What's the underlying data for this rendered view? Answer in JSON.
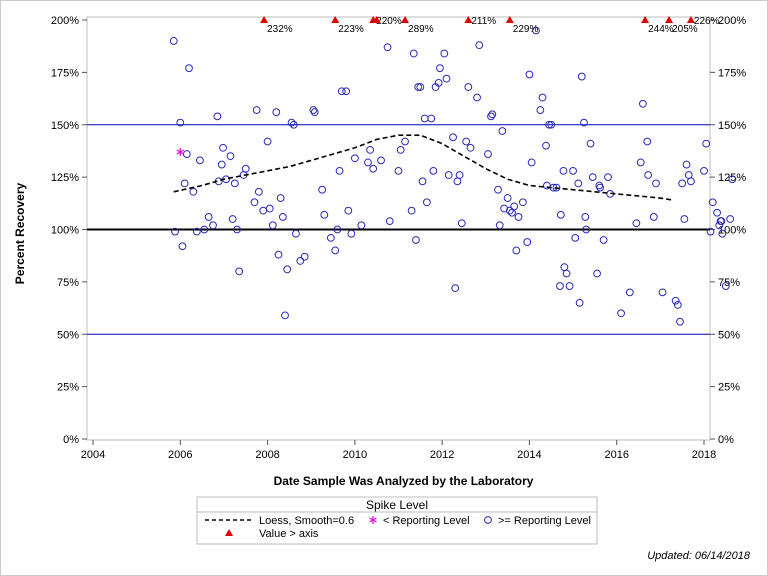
{
  "chart_data": {
    "type": "scatter",
    "xlabel": "Date Sample Was Analyzed by the Laboratory",
    "ylabel": "Percent Recovery",
    "xlim": [
      2004,
      2018.2
    ],
    "ylim": [
      0,
      200
    ],
    "x_ticks": [
      2004,
      2006,
      2008,
      2010,
      2012,
      2014,
      2016,
      2018
    ],
    "y_ticks": [
      0,
      25,
      50,
      75,
      100,
      125,
      150,
      175,
      200
    ],
    "y_tick_labels": [
      "0%",
      "25%",
      "50%",
      "75%",
      "100%",
      "125%",
      "150%",
      "175%",
      "200%"
    ],
    "reference_lines": [
      {
        "y": 50,
        "color": "#0000c0",
        "weight": "thin"
      },
      {
        "y": 100,
        "color": "#000000",
        "weight": "thick"
      },
      {
        "y": 150,
        "color": "#0000c0",
        "weight": "thin"
      }
    ],
    "grid": false,
    "series": [
      {
        "name": ">= Reporting Level",
        "marker": "open-circle",
        "color": "#2a2ab8",
        "points": [
          [
            2005.85,
            190
          ],
          [
            2005.88,
            99
          ],
          [
            2006.0,
            151
          ],
          [
            2006.05,
            92
          ],
          [
            2006.1,
            122
          ],
          [
            2006.15,
            136
          ],
          [
            2006.2,
            177
          ],
          [
            2006.3,
            118
          ],
          [
            2006.38,
            99
          ],
          [
            2006.45,
            133
          ],
          [
            2006.55,
            100
          ],
          [
            2006.65,
            106
          ],
          [
            2006.75,
            102
          ],
          [
            2006.85,
            154
          ],
          [
            2006.88,
            123
          ],
          [
            2006.95,
            131
          ],
          [
            2006.98,
            139
          ],
          [
            2007.05,
            124
          ],
          [
            2007.15,
            135
          ],
          [
            2007.2,
            105
          ],
          [
            2007.25,
            122
          ],
          [
            2007.3,
            100
          ],
          [
            2007.35,
            80
          ],
          [
            2007.45,
            126
          ],
          [
            2007.5,
            129
          ],
          [
            2007.7,
            113
          ],
          [
            2007.75,
            157
          ],
          [
            2007.8,
            118
          ],
          [
            2007.9,
            109
          ],
          [
            2008.0,
            142
          ],
          [
            2008.05,
            110
          ],
          [
            2008.12,
            102
          ],
          [
            2008.2,
            156
          ],
          [
            2008.25,
            88
          ],
          [
            2008.3,
            115
          ],
          [
            2008.35,
            106
          ],
          [
            2008.4,
            59
          ],
          [
            2008.45,
            81
          ],
          [
            2008.55,
            151
          ],
          [
            2008.6,
            150
          ],
          [
            2008.65,
            98
          ],
          [
            2008.75,
            85
          ],
          [
            2008.85,
            87
          ],
          [
            2009.05,
            157
          ],
          [
            2009.08,
            156
          ],
          [
            2009.25,
            119
          ],
          [
            2009.3,
            107
          ],
          [
            2009.45,
            96
          ],
          [
            2009.55,
            90
          ],
          [
            2009.6,
            100
          ],
          [
            2009.65,
            128
          ],
          [
            2009.7,
            166
          ],
          [
            2009.8,
            166
          ],
          [
            2009.85,
            109
          ],
          [
            2009.92,
            98
          ],
          [
            2010.0,
            134
          ],
          [
            2010.15,
            102
          ],
          [
            2010.3,
            132
          ],
          [
            2010.35,
            138
          ],
          [
            2010.42,
            129
          ],
          [
            2010.6,
            133
          ],
          [
            2010.75,
            187
          ],
          [
            2010.8,
            104
          ],
          [
            2011.0,
            128
          ],
          [
            2011.05,
            138
          ],
          [
            2011.15,
            142
          ],
          [
            2011.3,
            109
          ],
          [
            2011.35,
            184
          ],
          [
            2011.4,
            95
          ],
          [
            2011.45,
            168
          ],
          [
            2011.5,
            168
          ],
          [
            2011.55,
            123
          ],
          [
            2011.6,
            153
          ],
          [
            2011.65,
            113
          ],
          [
            2011.75,
            153
          ],
          [
            2011.8,
            128
          ],
          [
            2011.85,
            168
          ],
          [
            2011.92,
            170
          ],
          [
            2011.95,
            177
          ],
          [
            2012.05,
            184
          ],
          [
            2012.1,
            172
          ],
          [
            2012.15,
            126
          ],
          [
            2012.25,
            144
          ],
          [
            2012.3,
            72
          ],
          [
            2012.35,
            123
          ],
          [
            2012.4,
            126
          ],
          [
            2012.45,
            103
          ],
          [
            2012.55,
            142
          ],
          [
            2012.6,
            168
          ],
          [
            2012.65,
            139
          ],
          [
            2012.8,
            163
          ],
          [
            2012.85,
            188
          ],
          [
            2013.05,
            136
          ],
          [
            2013.12,
            154
          ],
          [
            2013.15,
            155
          ],
          [
            2013.28,
            119
          ],
          [
            2013.32,
            102
          ],
          [
            2013.38,
            147
          ],
          [
            2013.42,
            110
          ],
          [
            2013.5,
            115
          ],
          [
            2013.55,
            109
          ],
          [
            2013.6,
            108
          ],
          [
            2013.65,
            111
          ],
          [
            2013.7,
            90
          ],
          [
            2013.75,
            106
          ],
          [
            2013.85,
            113
          ],
          [
            2013.95,
            94
          ],
          [
            2014.0,
            174
          ],
          [
            2014.05,
            132
          ],
          [
            2014.15,
            195
          ],
          [
            2014.25,
            157
          ],
          [
            2014.3,
            163
          ],
          [
            2014.38,
            140
          ],
          [
            2014.4,
            121
          ],
          [
            2014.45,
            150
          ],
          [
            2014.5,
            150
          ],
          [
            2014.55,
            120
          ],
          [
            2014.62,
            120
          ],
          [
            2014.7,
            73
          ],
          [
            2014.72,
            107
          ],
          [
            2014.78,
            128
          ],
          [
            2014.8,
            82
          ],
          [
            2014.85,
            79
          ],
          [
            2014.92,
            73
          ],
          [
            2015.0,
            128
          ],
          [
            2015.05,
            96
          ],
          [
            2015.12,
            122
          ],
          [
            2015.15,
            65
          ],
          [
            2015.2,
            173
          ],
          [
            2015.25,
            151
          ],
          [
            2015.28,
            106
          ],
          [
            2015.3,
            100
          ],
          [
            2015.4,
            141
          ],
          [
            2015.45,
            125
          ],
          [
            2015.55,
            79
          ],
          [
            2015.6,
            121
          ],
          [
            2015.62,
            120
          ],
          [
            2015.7,
            95
          ],
          [
            2015.8,
            125
          ],
          [
            2015.85,
            117
          ],
          [
            2016.1,
            60
          ],
          [
            2016.3,
            70
          ],
          [
            2016.45,
            103
          ],
          [
            2016.55,
            132
          ],
          [
            2016.6,
            160
          ],
          [
            2016.7,
            142
          ],
          [
            2016.72,
            126
          ],
          [
            2016.85,
            106
          ],
          [
            2016.9,
            122
          ],
          [
            2017.05,
            70
          ],
          [
            2017.35,
            66
          ],
          [
            2017.4,
            64
          ],
          [
            2017.45,
            56
          ],
          [
            2017.5,
            122
          ],
          [
            2017.55,
            105
          ],
          [
            2017.6,
            131
          ],
          [
            2017.65,
            126
          ],
          [
            2017.7,
            123
          ],
          [
            2018.0,
            128
          ],
          [
            2018.05,
            141
          ],
          [
            2018.15,
            99
          ],
          [
            2018.2,
            113
          ],
          [
            2018.3,
            108
          ],
          [
            2018.35,
            102
          ],
          [
            2018.38,
            104
          ],
          [
            2018.4,
            104
          ],
          [
            2018.42,
            98
          ],
          [
            2018.5,
            73
          ],
          [
            2018.6,
            105
          ],
          [
            2018.65,
            124
          ]
        ]
      },
      {
        "name": "< Reporting Level",
        "marker": "asterisk",
        "color": "#e000e0",
        "points": [
          [
            2006.0,
            137
          ]
        ]
      },
      {
        "name": "Value > axis",
        "marker": "filled-triangle",
        "color": "#e00000",
        "points": [
          {
            "x": 2007.92,
            "label": "232%"
          },
          {
            "x": 2009.55,
            "label": "223%"
          },
          {
            "x": 2010.42,
            "label": "220%"
          },
          {
            "x": 2010.5,
            "label": ""
          },
          {
            "x": 2011.15,
            "label": "289%"
          },
          {
            "x": 2012.6,
            "label": "211%"
          },
          {
            "x": 2013.55,
            "label": "229%"
          },
          {
            "x": 2016.65,
            "label": "244%"
          },
          {
            "x": 2017.2,
            "label": "205%"
          },
          {
            "x": 2017.7,
            "label": "226%"
          }
        ]
      },
      {
        "name": "Loess, Smooth=0.6",
        "marker": "dashed-line",
        "color": "#000000",
        "points": [
          [
            2005.85,
            118
          ],
          [
            2006.5,
            121
          ],
          [
            2007.0,
            124
          ],
          [
            2007.5,
            126
          ],
          [
            2008.0,
            128
          ],
          [
            2008.5,
            130
          ],
          [
            2009.0,
            133
          ],
          [
            2009.5,
            136
          ],
          [
            2010.0,
            139
          ],
          [
            2010.5,
            143
          ],
          [
            2011.0,
            145
          ],
          [
            2011.5,
            145
          ],
          [
            2012.0,
            141
          ],
          [
            2012.5,
            135
          ],
          [
            2013.0,
            129
          ],
          [
            2013.5,
            124
          ],
          [
            2014.0,
            121
          ],
          [
            2014.5,
            120
          ],
          [
            2015.0,
            119
          ],
          [
            2015.5,
            118
          ],
          [
            2016.0,
            117
          ],
          [
            2016.5,
            116
          ],
          [
            2017.0,
            115
          ],
          [
            2017.3,
            114
          ]
        ]
      }
    ],
    "legend": {
      "title": "Spike Level",
      "position": "bottom-center",
      "entries": [
        {
          "label": "Loess, Smooth=0.6",
          "symbol": "dashed-line"
        },
        {
          "label": "< Reporting Level",
          "symbol": "asterisk"
        },
        {
          "label": ">= Reporting Level",
          "symbol": "open-circle"
        },
        {
          "label": "Value > axis",
          "symbol": "filled-triangle"
        }
      ]
    }
  },
  "footer": {
    "updated": "Updated: 06/14/2018"
  }
}
